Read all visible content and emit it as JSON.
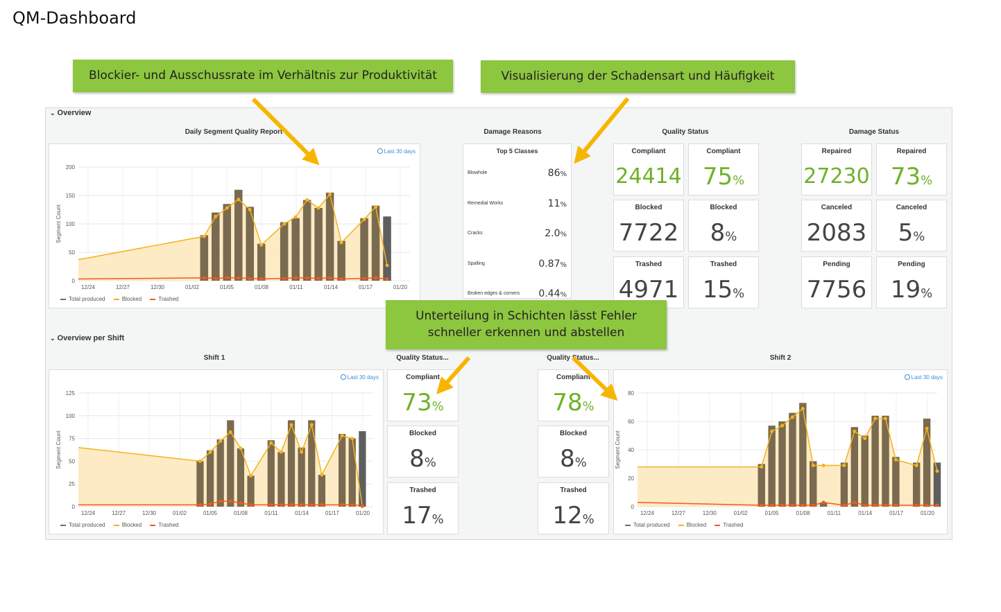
{
  "page_title": "QM-Dashboard",
  "callouts": {
    "c1": "Blockier- und Ausschussrate im Verhältnis zur Produktivität",
    "c2": "Visualisierung der Schadensart und Häufigkeit",
    "c3_line1": "Unterteilung in Schichten lässt Fehler",
    "c3_line2": "schneller erkennen und abstellen"
  },
  "overview": {
    "section_label": "Overview",
    "daily_title": "Daily Segment Quality Report",
    "damage_reasons_title": "Damage Reasons",
    "quality_status_title": "Quality Status",
    "damage_status_title": "Damage Status",
    "time_range": "Last 30 days",
    "y_label": "Segment Count",
    "legend": [
      "Total produced",
      "Blocked",
      "Trashed"
    ]
  },
  "damage_reasons": {
    "header": "Top 5 Classes",
    "items": [
      {
        "name": "Blowhole",
        "value": "86",
        "unit": "%"
      },
      {
        "name": "Remedial Works",
        "value": "11",
        "unit": "%"
      },
      {
        "name": "Cracks",
        "value": "2.0",
        "unit": "%"
      },
      {
        "name": "Spalling",
        "value": "0.87",
        "unit": "%"
      },
      {
        "name": "Broken edges & corners",
        "value": "0.44",
        "unit": "%"
      }
    ]
  },
  "quality_status": {
    "compliant_count_label": "Compliant",
    "compliant_count": "24414",
    "compliant_pct_label": "Compliant",
    "compliant_pct": "75",
    "blocked_count_label": "Blocked",
    "blocked_count": "7722",
    "blocked_pct_label": "Blocked",
    "blocked_pct": "8",
    "trashed_count_label": "Trashed",
    "trashed_count": "4971",
    "trashed_pct_label": "Trashed",
    "trashed_pct": "15",
    "pct_unit": "%"
  },
  "damage_status": {
    "repaired_count_label": "Repaired",
    "repaired_count": "27230",
    "repaired_pct_label": "Repaired",
    "repaired_pct": "73",
    "canceled_count_label": "Canceled",
    "canceled_count": "2083",
    "canceled_pct_label": "Canceled",
    "canceled_pct": "5",
    "pending_count_label": "Pending",
    "pending_count": "7756",
    "pending_pct_label": "Pending",
    "pending_pct": "19",
    "pct_unit": "%"
  },
  "per_shift": {
    "section_label": "Overview per Shift",
    "shift1_title": "Shift 1",
    "shift2_title": "Shift 2",
    "qs1_title": "Quality Status...",
    "qs2_title": "Quality Status...",
    "time_range": "Last 30 days",
    "y_label": "Segment Count",
    "legend": [
      "Total produced",
      "Blocked",
      "Trashed"
    ]
  },
  "shift1_status": {
    "compliant_label": "Compliant",
    "compliant_pct": "73",
    "blocked_label": "Blocked",
    "blocked_pct": "8",
    "trashed_label": "Trashed",
    "trashed_pct": "17",
    "pct_unit": "%"
  },
  "shift2_status": {
    "compliant_label": "Compliant",
    "compliant_pct": "78",
    "blocked_label": "Blocked",
    "blocked_pct": "8",
    "trashed_label": "Trashed",
    "trashed_pct": "12",
    "pct_unit": "%"
  },
  "colors": {
    "bar": "#7a6a4f",
    "bar_last": "#5e5e5e",
    "blocked_line": "#f4b21d",
    "trashed_line": "#f05a1e",
    "area_fill": "#fde9bf",
    "callout": "#8dc63f",
    "green_value": "#6fb128"
  },
  "chart_data": [
    {
      "type": "bar",
      "name": "daily",
      "xlabels": [
        "12/24",
        "12/27",
        "12/30",
        "01/02",
        "01/05",
        "01/08",
        "01/11",
        "01/14",
        "01/17",
        "01/20"
      ],
      "ylabel": "Segment Count",
      "yticks": [
        0,
        50,
        100,
        150,
        200
      ],
      "ylim": [
        0,
        200
      ],
      "x_days": [
        0,
        29
      ],
      "bar_days": [
        11,
        12,
        13,
        14,
        15,
        16,
        18,
        19,
        20,
        21,
        22,
        23,
        25,
        26,
        27
      ],
      "total_produced": [
        80,
        120,
        135,
        160,
        130,
        65,
        103,
        110,
        142,
        128,
        155,
        70,
        110,
        132,
        113
      ],
      "blocked": [
        78,
        113,
        128,
        143,
        125,
        63,
        100,
        112,
        142,
        128,
        152,
        67,
        108,
        130,
        27
      ],
      "trashed": [
        5,
        4,
        5,
        5,
        4,
        3,
        4,
        5,
        5,
        4,
        5,
        3,
        4,
        5,
        3
      ],
      "area_start": [
        0,
        37
      ],
      "trashed_start": [
        0,
        3
      ],
      "legend": [
        "Total produced",
        "Blocked",
        "Trashed"
      ]
    },
    {
      "type": "bar",
      "name": "shift1",
      "xlabels": [
        "12/24",
        "12/27",
        "12/30",
        "01/02",
        "01/05",
        "01/08",
        "01/11",
        "01/14",
        "01/17",
        "01/20"
      ],
      "ylabel": "Segment Count",
      "yticks": [
        0,
        25,
        50,
        75,
        100,
        125
      ],
      "ylim": [
        0,
        125
      ],
      "x_days": [
        0,
        29
      ],
      "bar_days": [
        12,
        13,
        14,
        15,
        16,
        17,
        19,
        20,
        21,
        22,
        23,
        24,
        26,
        27,
        28
      ],
      "total_produced": [
        50,
        62,
        74,
        95,
        64,
        34,
        73,
        60,
        95,
        65,
        95,
        35,
        80,
        75,
        83
      ],
      "blocked": [
        50,
        60,
        72,
        82,
        64,
        34,
        70,
        60,
        90,
        60,
        90,
        35,
        78,
        75,
        0
      ],
      "trashed": [
        2,
        3,
        6,
        6,
        4,
        2,
        2,
        2,
        2,
        2,
        2,
        2,
        2,
        2,
        1
      ],
      "area_start": [
        0,
        65
      ],
      "trashed_start": [
        0,
        2
      ],
      "legend": [
        "Total produced",
        "Blocked",
        "Trashed"
      ]
    },
    {
      "type": "bar",
      "name": "shift2",
      "xlabels": [
        "12/24",
        "12/27",
        "12/30",
        "01/02",
        "01/05",
        "01/08",
        "01/11",
        "01/14",
        "01/17",
        "01/20"
      ],
      "ylabel": "Segment Count",
      "yticks": [
        0,
        20,
        40,
        60,
        80
      ],
      "ylim": [
        0,
        80
      ],
      "x_days": [
        0,
        29
      ],
      "bar_days": [
        12,
        13,
        14,
        15,
        16,
        17,
        18,
        20,
        21,
        22,
        23,
        24,
        25,
        27,
        28,
        29
      ],
      "total_produced": [
        30,
        57,
        60,
        66,
        73,
        32,
        3,
        31,
        56,
        50,
        64,
        64,
        35,
        31,
        62,
        31
      ],
      "blocked": [
        28,
        53,
        57,
        63,
        69,
        29,
        29,
        29,
        53,
        48,
        62,
        62,
        33,
        29,
        55,
        25
      ],
      "trashed": [
        1,
        1,
        1,
        1,
        1,
        1,
        3,
        1,
        3,
        1,
        1,
        1,
        1,
        1,
        1,
        1
      ],
      "area_start": [
        0,
        28
      ],
      "trashed_start": [
        0,
        3
      ],
      "legend": [
        "Total produced",
        "Blocked",
        "Trashed"
      ]
    }
  ]
}
